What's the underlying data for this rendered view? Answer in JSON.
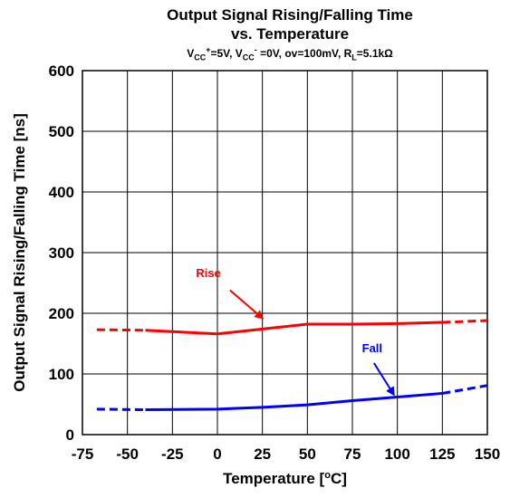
{
  "title_line1": "Output Signal Rising/Falling Time",
  "title_line2": "vs. Temperature",
  "subtitle_parts": [
    "V",
    "CC",
    "+",
    "=5V, V",
    "CC",
    "-",
    " =0V, ov=100mV, R",
    "L",
    "=5.1kΩ"
  ],
  "chart_data": {
    "type": "line",
    "title": "Output Signal Rising/Falling Time vs. Temperature",
    "subtitle": "VCC+=5V, VCC- =0V, ov=100mV, RL=5.1kΩ",
    "xlabel_parts": [
      "Temperature [",
      "o",
      "C]"
    ],
    "xlabel": "Temperature [oC]",
    "ylabel": "Output Signal Rising/Falling Time [ns]",
    "xlim": [
      -75,
      150
    ],
    "ylim": [
      0,
      600
    ],
    "xticks": [
      -75,
      -50,
      -25,
      0,
      25,
      50,
      75,
      100,
      125,
      150
    ],
    "yticks": [
      0,
      100,
      200,
      300,
      400,
      500,
      600
    ],
    "grid": true,
    "legend": "none",
    "series": [
      {
        "name": "Rise",
        "color": "#ff0000",
        "solid": [
          [
            -40,
            172
          ],
          [
            0,
            166
          ],
          [
            25,
            174
          ],
          [
            50,
            182
          ],
          [
            75,
            182
          ],
          [
            100,
            183
          ],
          [
            125,
            185
          ]
        ],
        "dashed_left": [
          [
            -67,
            173
          ],
          [
            -40,
            172
          ]
        ],
        "dashed_right": [
          [
            125,
            185
          ],
          [
            150,
            188
          ]
        ]
      },
      {
        "name": "Fall",
        "color": "#0000ff",
        "solid": [
          [
            -40,
            41
          ],
          [
            0,
            42
          ],
          [
            25,
            45
          ],
          [
            50,
            49
          ],
          [
            75,
            56
          ],
          [
            100,
            62
          ],
          [
            125,
            68
          ]
        ],
        "dashed_left": [
          [
            -67,
            42
          ],
          [
            -40,
            41
          ]
        ],
        "dashed_right": [
          [
            125,
            68
          ],
          [
            150,
            81
          ]
        ]
      }
    ],
    "annotations": [
      {
        "text": "Rise",
        "color": "#ff0000",
        "label_at": [
          -5,
          260
        ],
        "arrow_from": [
          7,
          238
        ],
        "arrow_to": [
          25,
          192
        ]
      },
      {
        "text": "Fall",
        "color": "#0000ff",
        "label_at": [
          86,
          136
        ],
        "arrow_from": [
          87,
          118
        ],
        "arrow_to": [
          98,
          66
        ]
      }
    ]
  }
}
